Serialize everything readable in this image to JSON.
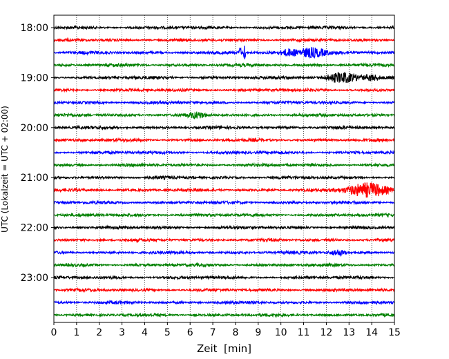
{
  "chart_data": {
    "type": "line",
    "title": "",
    "xlabel": "Zeit  [min]",
    "ylabel": "UTC (Lokalzeit = UTC + 02:00)",
    "xlim": [
      0,
      15
    ],
    "x_ticks": [
      "0",
      "1",
      "2",
      "3",
      "4",
      "5",
      "6",
      "7",
      "8",
      "9",
      "10",
      "11",
      "12",
      "13",
      "14",
      "15"
    ],
    "y_tick_labels": [
      "18:00",
      "19:00",
      "20:00",
      "21:00",
      "22:00",
      "23:00"
    ],
    "grid": "vertical dotted",
    "row_colors": [
      "#000000",
      "#ff0000",
      "#0000ff",
      "#008000"
    ],
    "series": [
      {
        "start": "18:00",
        "events": []
      },
      {
        "start": "18:15",
        "events": []
      },
      {
        "start": "18:30",
        "events": [
          {
            "minute": 8.2,
            "amplitude": "spike"
          },
          {
            "minute": 8.4,
            "amplitude": "spike"
          },
          {
            "minute": 11.3,
            "amplitude": "medium"
          },
          {
            "minute": 10.3,
            "amplitude": "small"
          }
        ]
      },
      {
        "start": "18:45",
        "events": []
      },
      {
        "start": "19:00",
        "events": [
          {
            "minute": 12.7,
            "amplitude": "medium"
          },
          {
            "minute": 14.0,
            "amplitude": "small"
          }
        ]
      },
      {
        "start": "19:15",
        "events": []
      },
      {
        "start": "19:30",
        "events": []
      },
      {
        "start": "19:45",
        "events": [
          {
            "minute": 6.3,
            "amplitude": "small"
          }
        ]
      },
      {
        "start": "20:00",
        "events": []
      },
      {
        "start": "20:15",
        "events": []
      },
      {
        "start": "20:30",
        "events": []
      },
      {
        "start": "20:45",
        "events": []
      },
      {
        "start": "21:00",
        "events": []
      },
      {
        "start": "21:15",
        "events": [
          {
            "minute": 13.8,
            "amplitude": "large"
          }
        ]
      },
      {
        "start": "21:30",
        "events": []
      },
      {
        "start": "21:45",
        "events": []
      },
      {
        "start": "22:00",
        "events": []
      },
      {
        "start": "22:15",
        "events": []
      },
      {
        "start": "22:30",
        "events": [
          {
            "minute": 12.5,
            "amplitude": "small"
          }
        ]
      },
      {
        "start": "22:45",
        "events": []
      },
      {
        "start": "23:00",
        "events": []
      },
      {
        "start": "23:15",
        "events": []
      },
      {
        "start": "23:30",
        "events": []
      },
      {
        "start": "23:45",
        "events": []
      }
    ]
  }
}
